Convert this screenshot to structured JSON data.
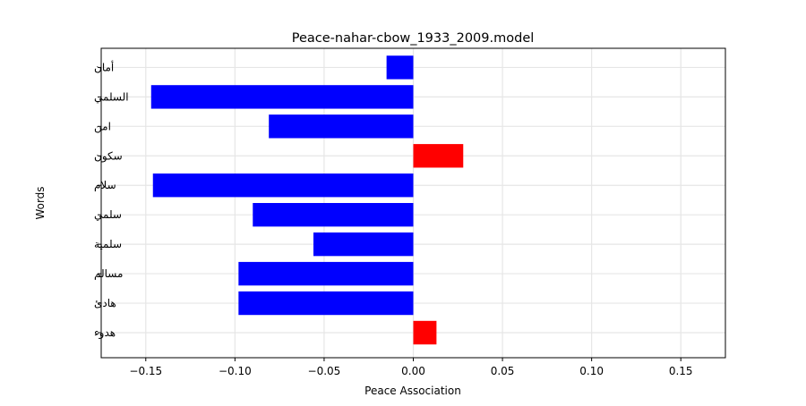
{
  "chart_data": {
    "type": "bar",
    "orientation": "horizontal",
    "title": "Peace-nahar-cbow_1933_2009.model",
    "xlabel": "Peace Association",
    "ylabel": "Words",
    "xlim": [
      -0.175,
      0.175
    ],
    "xticks": [
      -0.15,
      -0.1,
      -0.05,
      0.0,
      0.05,
      0.1,
      0.15
    ],
    "xtick_labels": [
      "−0.15",
      "−0.10",
      "−0.05",
      "0.00",
      "0.05",
      "0.10",
      "0.15"
    ],
    "grid": true,
    "categories": [
      "أمان",
      "السلمي",
      "امن",
      "سكون",
      "سلام",
      "سلمي",
      "سلمية",
      "مسالم",
      "هادئ",
      "هدوء"
    ],
    "values": [
      -0.015,
      -0.147,
      -0.081,
      0.028,
      -0.146,
      -0.09,
      -0.056,
      -0.098,
      -0.098,
      0.013
    ],
    "colors": {
      "negative": "#0000ff",
      "positive": "#ff0000",
      "grid": "#e6e6e6",
      "axis": "#000000"
    }
  }
}
